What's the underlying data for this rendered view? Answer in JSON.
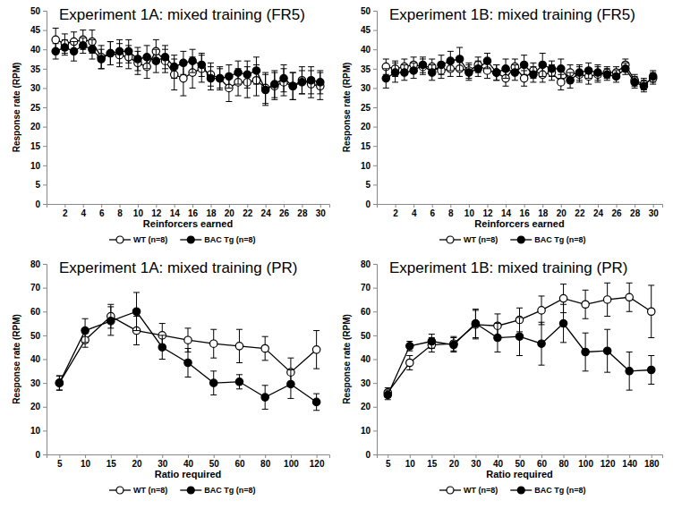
{
  "chart_data": [
    {
      "type": "line",
      "title": "Experiment 1A: mixed training (FR5)",
      "x_label": "Reinforcers earned",
      "y_label": "Response rate (RPM)",
      "x": [
        1,
        2,
        3,
        4,
        5,
        6,
        7,
        8,
        9,
        10,
        11,
        12,
        13,
        14,
        15,
        16,
        17,
        18,
        19,
        20,
        21,
        22,
        23,
        24,
        25,
        26,
        27,
        28,
        29,
        30
      ],
      "xlim": [
        0,
        31
      ],
      "xticks": [
        2,
        4,
        6,
        8,
        10,
        12,
        14,
        16,
        18,
        20,
        22,
        24,
        26,
        28,
        30
      ],
      "ylim": [
        0,
        50
      ],
      "yticks": [
        0,
        5,
        10,
        15,
        20,
        25,
        30,
        35,
        40,
        45,
        50
      ],
      "legend": "bottom",
      "series": [
        {
          "name": "WT (n=8)",
          "color": "#000000",
          "marker": "circle-open",
          "values": [
            42.5,
            41.5,
            42,
            42.5,
            42,
            38,
            39,
            38.5,
            38,
            36.5,
            35.5,
            39.5,
            37,
            33.5,
            32.5,
            34,
            35,
            33.5,
            32.5,
            30,
            31.5,
            31.5,
            32,
            30,
            30.5,
            31.5,
            30.5,
            32,
            31,
            30.5
          ],
          "errors": [
            3,
            2.5,
            2.5,
            2.5,
            3,
            3,
            3,
            3,
            3,
            3,
            3,
            3,
            3,
            4,
            4.5,
            4,
            3.5,
            3,
            3,
            3.5,
            3.5,
            4,
            4,
            4,
            3.5,
            3.5,
            3.5,
            3.5,
            3.5,
            3.5
          ]
        },
        {
          "name": "BAC Tg (n=8)",
          "color": "#000000",
          "marker": "circle",
          "values": [
            39.5,
            40.5,
            39.5,
            41,
            40,
            37.5,
            39,
            39.5,
            39.5,
            37.5,
            38,
            37,
            38,
            35.5,
            36.5,
            37,
            36,
            32.5,
            32.5,
            33,
            34,
            33.5,
            34.5,
            29.5,
            31,
            32.5,
            30.5,
            31.5,
            32,
            31.5
          ],
          "errors": [
            2,
            2,
            2.5,
            2,
            2.5,
            2.5,
            3,
            3,
            3,
            3,
            3,
            3,
            3,
            3,
            3,
            3,
            3,
            3,
            2.5,
            3,
            3,
            3.5,
            3.5,
            4,
            3.5,
            3.5,
            3.5,
            3,
            3.5,
            3
          ]
        }
      ]
    },
    {
      "type": "line",
      "title": "Experiment 1B: mixed training (FR5)",
      "x_label": "Reinforcers earned",
      "y_label": "Response rate (RPM)",
      "x": [
        1,
        2,
        3,
        4,
        5,
        6,
        7,
        8,
        9,
        10,
        11,
        12,
        13,
        14,
        15,
        16,
        17,
        18,
        19,
        20,
        21,
        22,
        23,
        24,
        25,
        26,
        27,
        28,
        29,
        30
      ],
      "xlim": [
        0,
        31
      ],
      "xticks": [
        2,
        4,
        6,
        8,
        10,
        12,
        14,
        16,
        18,
        20,
        22,
        24,
        26,
        28,
        30
      ],
      "ylim": [
        0,
        50
      ],
      "yticks": [
        0,
        5,
        10,
        15,
        20,
        25,
        30,
        35,
        40,
        45,
        50
      ],
      "legend": "bottom",
      "series": [
        {
          "name": "WT (n=8)",
          "color": "#000000",
          "marker": "circle-open",
          "values": [
            35.5,
            35,
            35.5,
            36,
            35.5,
            35.5,
            34.5,
            35,
            35,
            34.5,
            36,
            34.5,
            34,
            32.5,
            35.5,
            32.5,
            34.5,
            33.5,
            34,
            31.5,
            34,
            33.5,
            33,
            33.5,
            34,
            34,
            36,
            32,
            31,
            32.5
          ],
          "errors": [
            2,
            2,
            2,
            2,
            2,
            2,
            2,
            2,
            2,
            2,
            2,
            2,
            2,
            2,
            2,
            2,
            2,
            2,
            2,
            2,
            2,
            2,
            2,
            2,
            1.5,
            1.5,
            1.5,
            1.5,
            1.5,
            1.5
          ]
        },
        {
          "name": "BAC Tg (n=8)",
          "color": "#000000",
          "marker": "circle",
          "values": [
            32.5,
            34,
            34,
            34.5,
            36,
            34,
            36,
            37,
            37.5,
            34,
            35,
            37,
            34,
            35,
            34,
            36,
            33.5,
            36,
            35,
            35,
            32,
            34,
            34.5,
            34,
            33.5,
            33,
            35,
            31.5,
            30.5,
            33
          ],
          "errors": [
            2.5,
            2.5,
            2,
            2,
            2,
            2,
            2.5,
            2.5,
            3,
            2,
            2,
            2,
            2,
            2.5,
            2,
            2.5,
            2,
            3,
            2,
            2.5,
            2,
            2,
            2,
            2,
            1.5,
            1.5,
            1.5,
            1.5,
            1.5,
            1.5
          ]
        }
      ]
    },
    {
      "type": "line",
      "title": "Experiment 1A: mixed training (PR)",
      "x_label": "Ratio required",
      "y_label": "Response rate (RPM)",
      "categories": [
        "5",
        "10",
        "15",
        "20",
        "30",
        "40",
        "50",
        "60",
        "80",
        "100",
        "120"
      ],
      "ylim": [
        0,
        80
      ],
      "yticks": [
        0,
        10,
        20,
        30,
        40,
        50,
        60,
        70,
        80
      ],
      "legend": "bottom",
      "series": [
        {
          "name": "WT (n=8)",
          "color": "#000000",
          "marker": "circle-open",
          "values": [
            30,
            48,
            58,
            52,
            50,
            48,
            46.5,
            45.5,
            44.5,
            34.5,
            44
          ],
          "errors": [
            3,
            3,
            5,
            6,
            5,
            5,
            6,
            7,
            5,
            6,
            8
          ]
        },
        {
          "name": "BAC Tg (n=8)",
          "color": "#000000",
          "marker": "circle",
          "values": [
            30,
            52,
            56,
            60,
            45,
            38.5,
            30,
            30.5,
            24,
            29.5,
            22
          ],
          "errors": [
            3,
            5,
            6,
            8,
            5,
            6,
            5,
            3,
            5,
            6,
            3.5
          ]
        }
      ]
    },
    {
      "type": "line",
      "title": "Experiment 1B: mixed training (PR)",
      "x_label": "Ratio required",
      "y_label": "Response rate (RPM)",
      "categories": [
        "5",
        "10",
        "15",
        "20",
        "30",
        "40",
        "50",
        "60",
        "80",
        "100",
        "120",
        "140",
        "180"
      ],
      "ylim": [
        0,
        80
      ],
      "yticks": [
        0,
        10,
        20,
        30,
        40,
        50,
        60,
        70,
        80
      ],
      "legend": "bottom",
      "series": [
        {
          "name": "WT (n=8)",
          "color": "#000000",
          "marker": "circle-open",
          "values": [
            26,
            38.5,
            46,
            46.5,
            54.5,
            54,
            56.5,
            60.5,
            65.5,
            63,
            65,
            66,
            60
          ],
          "errors": [
            2,
            3,
            3,
            3,
            6,
            5,
            5,
            6,
            6,
            6,
            7,
            6,
            11
          ]
        },
        {
          "name": "BAC Tg (n=8)",
          "color": "#000000",
          "marker": "circle",
          "values": [
            25,
            45.5,
            47.5,
            46,
            55,
            49,
            49.5,
            46.5,
            55,
            43,
            43.5,
            35,
            35.5
          ],
          "errors": [
            2,
            2,
            3,
            3,
            6,
            6,
            8,
            9,
            8,
            8,
            9,
            8,
            6
          ]
        }
      ]
    }
  ]
}
